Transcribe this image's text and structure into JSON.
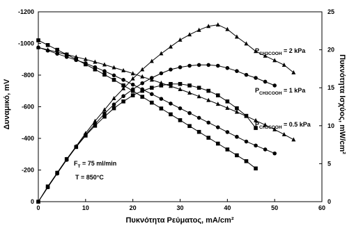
{
  "chart_data": {
    "type": "line",
    "xlabel": "Πυκνότητα Ρεύματος, mA/cm²",
    "ylabel_left": "Δυναμικό, mV",
    "ylabel_right": "Πυκνότητα Ισχύος, mW/cm²",
    "x_ticks": [
      "0",
      "10",
      "20",
      "30",
      "40",
      "50",
      "60"
    ],
    "y_left_ticks": [
      "0",
      "-200",
      "-400",
      "-600",
      "-800",
      "-1000",
      "-1200"
    ],
    "y_right_ticks": [
      "0",
      "5",
      "10",
      "15",
      "20",
      "25"
    ],
    "xlim": [
      0,
      60
    ],
    "ylim_left": [
      0,
      -1200
    ],
    "ylim_right": [
      0,
      25
    ],
    "annotations": {
      "flow_text": "F",
      "flow_sub": "T",
      "flow_value": " = 75 ml/min",
      "temperature": "T = 850°C"
    },
    "series": [
      {
        "label_main": "P",
        "label_sub": "CH3COOH",
        "label_value": " = 2 kPa",
        "marker": "triangle",
        "voltage": {
          "x": [
            0,
            2,
            4,
            6,
            8,
            10,
            12,
            14,
            16,
            18,
            20,
            22,
            24,
            26,
            28,
            30,
            32,
            34,
            36,
            38,
            40,
            42,
            44,
            46,
            48,
            50,
            52,
            54
          ],
          "y": [
            -975,
            -960,
            -945,
            -930,
            -915,
            -900,
            -883,
            -866,
            -848,
            -829,
            -810,
            -790,
            -770,
            -750,
            -730,
            -710,
            -688,
            -665,
            -641,
            -617,
            -592,
            -567,
            -540,
            -513,
            -485,
            -456,
            -425,
            -392
          ]
        },
        "power": {
          "x": [
            0,
            2,
            4,
            6,
            8,
            10,
            12,
            14,
            16,
            18,
            20,
            22,
            24,
            26,
            28,
            30,
            32,
            34,
            36,
            38,
            40,
            42,
            44,
            46,
            48,
            50,
            52,
            54
          ],
          "y": [
            0,
            1.9,
            3.8,
            5.6,
            7.3,
            9.0,
            10.6,
            12.1,
            13.6,
            14.9,
            16.2,
            17.4,
            18.5,
            19.5,
            20.4,
            21.3,
            22.0,
            22.6,
            23.1,
            23.3,
            22.7,
            21.7,
            20.8,
            19.8,
            19.2,
            18.6,
            18.0,
            17.0
          ]
        }
      },
      {
        "label_main": "P",
        "label_sub": "CH3COOH",
        "label_value": " = 1 kPa",
        "marker": "circle",
        "voltage": {
          "x": [
            0,
            2,
            4,
            6,
            8,
            10,
            12,
            14,
            16,
            18,
            20,
            22,
            24,
            26,
            28,
            30,
            32,
            34,
            36,
            38,
            40,
            42,
            44,
            46,
            48,
            50
          ],
          "y": [
            -975,
            -955,
            -935,
            -915,
            -895,
            -875,
            -850,
            -825,
            -798,
            -770,
            -740,
            -710,
            -680,
            -650,
            -620,
            -590,
            -560,
            -530,
            -500,
            -470,
            -440,
            -410,
            -380,
            -355,
            -330,
            -305
          ]
        },
        "power": {
          "x": [
            0,
            2,
            4,
            6,
            8,
            10,
            12,
            14,
            16,
            18,
            20,
            22,
            24,
            26,
            28,
            30,
            32,
            34,
            36,
            38,
            40,
            42,
            44,
            46,
            48,
            50
          ],
          "y": [
            0,
            1.9,
            3.7,
            5.5,
            7.2,
            8.8,
            10.2,
            11.6,
            12.8,
            13.9,
            14.8,
            15.6,
            16.3,
            16.9,
            17.4,
            17.7,
            17.9,
            18.0,
            18.0,
            17.9,
            17.6,
            17.2,
            16.7,
            16.3,
            15.8,
            15.3
          ]
        }
      },
      {
        "label_main": "P",
        "label_sub": "CH3COOH",
        "label_value": " = 0.5 kPa",
        "marker": "square",
        "voltage": {
          "x": [
            0,
            2,
            4,
            6,
            8,
            10,
            12,
            14,
            16,
            18,
            20,
            22,
            24,
            26,
            28,
            30,
            32,
            34,
            36,
            38,
            40,
            42,
            44,
            46
          ],
          "y": [
            -1020,
            -990,
            -960,
            -930,
            -900,
            -868,
            -836,
            -803,
            -770,
            -735,
            -700,
            -663,
            -626,
            -589,
            -552,
            -515,
            -478,
            -441,
            -404,
            -367,
            -330,
            -293,
            -256,
            -210
          ]
        },
        "power": {
          "x": [
            0,
            2,
            4,
            6,
            8,
            10,
            12,
            14,
            16,
            18,
            20,
            22,
            24,
            26,
            28,
            30,
            32,
            34,
            36,
            38,
            40,
            42,
            44,
            46
          ],
          "y": [
            0,
            2.0,
            3.8,
            5.6,
            7.2,
            8.7,
            10.0,
            11.2,
            12.3,
            13.2,
            14.0,
            14.6,
            15.0,
            15.3,
            15.5,
            15.5,
            15.3,
            15.0,
            14.6,
            14.0,
            13.2,
            12.3,
            11.3,
            9.7
          ]
        }
      }
    ]
  }
}
